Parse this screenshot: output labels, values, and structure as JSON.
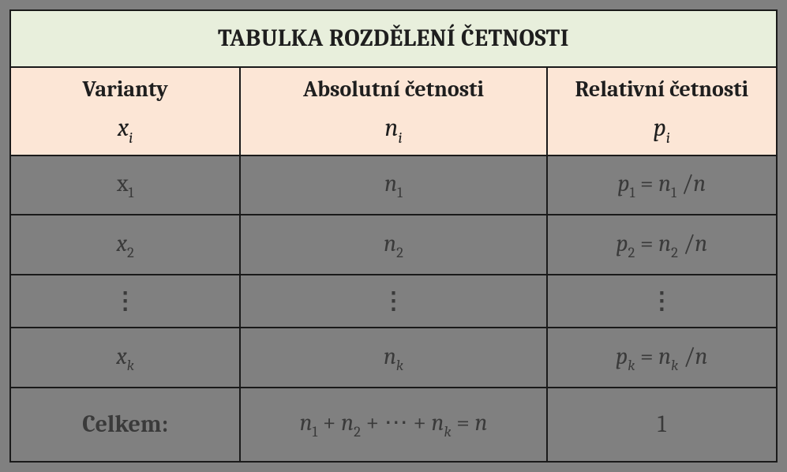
{
  "title": "TABULKA ROZDĚLENÍ ČETNOSTI",
  "headers": {
    "col1": {
      "label": "Varianty",
      "symbol_base": "x",
      "symbol_sub": "i"
    },
    "col2": {
      "label": "Absolutní četnosti",
      "symbol_base": "n",
      "symbol_sub": "i"
    },
    "col3": {
      "label": "Relativní četnosti",
      "symbol_base": "p",
      "symbol_sub": "i"
    }
  },
  "rows": [
    {
      "x_base": "x",
      "x_sub": "1",
      "n_base": "n",
      "n_sub": "1",
      "p_lhs_base": "p",
      "p_lhs_sub": "1",
      "p_rhs_base": "n",
      "p_rhs_sub": "1",
      "p_div": "n"
    },
    {
      "x_base": "x",
      "x_sub": "2",
      "n_base": "n",
      "n_sub": "2",
      "p_lhs_base": "p",
      "p_lhs_sub": "2",
      "p_rhs_base": "n",
      "p_rhs_sub": "2",
      "p_div": "n"
    }
  ],
  "dots": "⋮",
  "row_k": {
    "x_base": "x",
    "x_sub": "k",
    "n_base": "n",
    "n_sub": "k",
    "p_lhs_base": "p",
    "p_lhs_sub": "k",
    "p_rhs_base": "n",
    "p_rhs_sub": "k",
    "p_div": "n"
  },
  "total": {
    "label": "Celkem:",
    "n1_base": "n",
    "n1_sub": "1",
    "n2_base": "n",
    "n2_sub": "2",
    "dots": "⋯",
    "nk_base": "n",
    "nk_sub": "k",
    "eq_rhs": "n",
    "p_sum": "1"
  },
  "style": {
    "title_bg": "#e8efdc",
    "header_bg": "#fce6d6",
    "body_bg": "#808080",
    "border_color": "#1a1a1a",
    "title_fontsize": 30,
    "header_fontsize": 28,
    "cell_fontsize": 30,
    "font_family": "Cambria"
  }
}
